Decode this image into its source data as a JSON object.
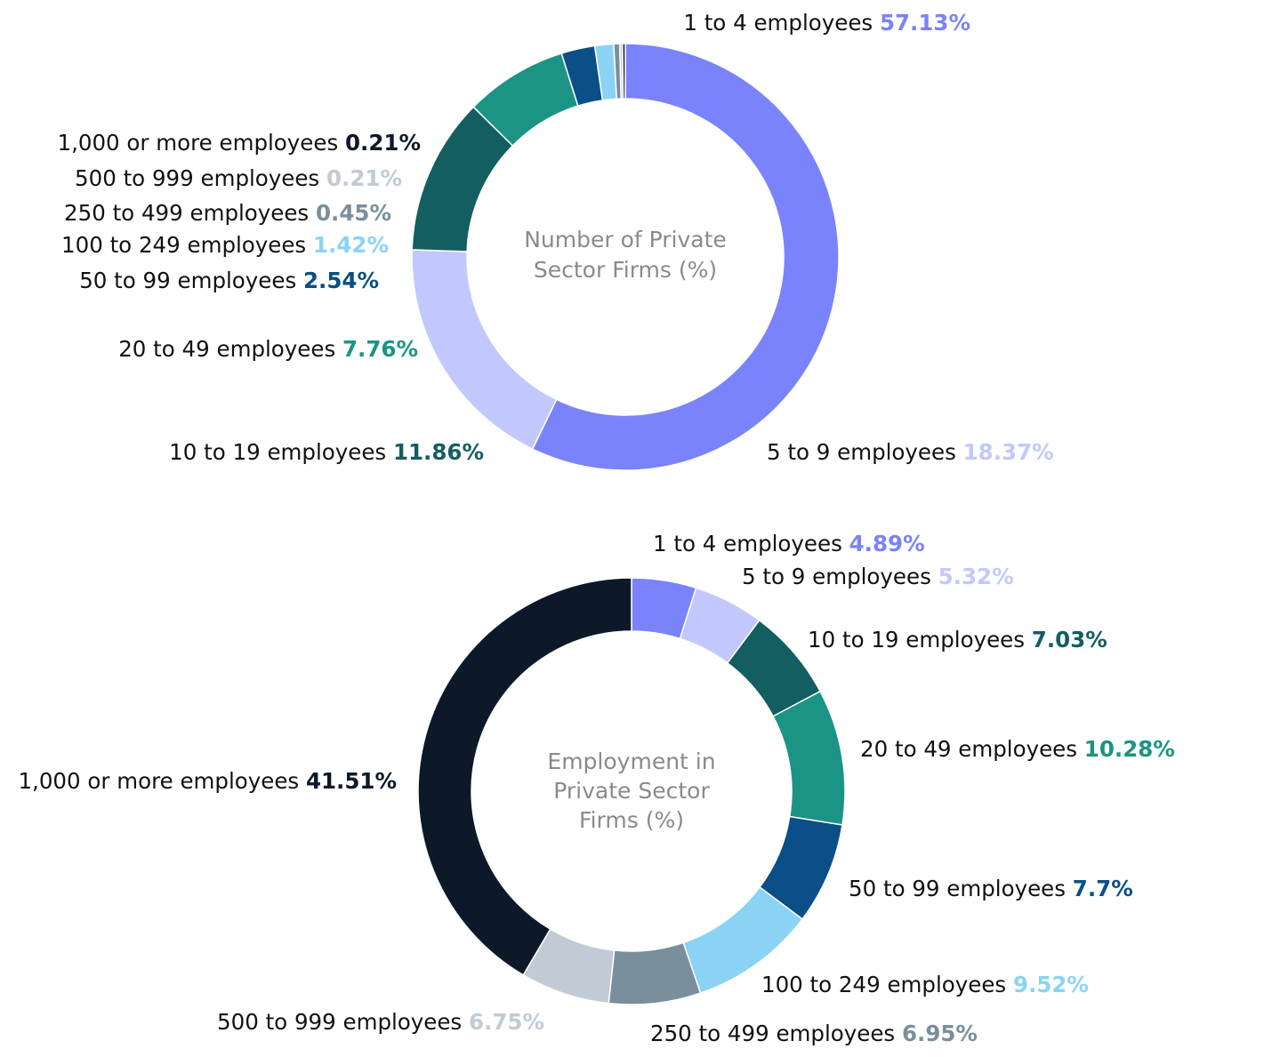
{
  "chart_data": [
    {
      "type": "pie",
      "title": "Number of Private Sector Firms (%)",
      "title_lines": [
        "Number of Private",
        "Sector Firms (%)"
      ],
      "categories": [
        "1 to 4 employees",
        "5 to 9 employees",
        "10 to 19 employees",
        "20 to 49 employees",
        "50 to 99 employees",
        "100 to 249 employees",
        "250 to 499 employees",
        "500 to 999 employees",
        "1,000 or more employees"
      ],
      "values": [
        57.13,
        18.37,
        11.86,
        7.76,
        2.54,
        1.42,
        0.45,
        0.21,
        0.21
      ],
      "value_labels": [
        "57.13%",
        "18.37%",
        "11.86%",
        "7.76%",
        "2.54%",
        "1.42%",
        "0.45%",
        "0.21%",
        "0.21%"
      ],
      "colors": [
        "#7a83fb",
        "#c3c8fc",
        "#135e61",
        "#1b9485",
        "#0a4f87",
        "#8ad3f5",
        "#7a8f9c",
        "#c1cbd5",
        "#0d1928"
      ],
      "donut": true
    },
    {
      "type": "pie",
      "title": "Employment in Private Sector Firms (%)",
      "title_lines": [
        "Employment in",
        "Private Sector",
        "Firms (%)"
      ],
      "categories": [
        "1 to 4 employees",
        "5 to 9 employees",
        "10 to 19 employees",
        "20 to 49 employees",
        "50 to 99 employees",
        "100 to 249 employees",
        "250 to 499 employees",
        "500 to 999 employees",
        "1,000 or more employees"
      ],
      "values": [
        4.89,
        5.32,
        7.03,
        10.28,
        7.7,
        9.52,
        6.95,
        6.75,
        41.51
      ],
      "value_labels": [
        "4.89%",
        "5.32%",
        "7.03%",
        "10.28%",
        "7.7%",
        "9.52%",
        "6.95%",
        "6.75%",
        "41.51%"
      ],
      "colors": [
        "#7a83fb",
        "#c3c8fc",
        "#135e61",
        "#1b9485",
        "#0a4f87",
        "#8ad3f5",
        "#7a8f9c",
        "#c1cbd5",
        "#0d1928"
      ],
      "donut": true
    }
  ]
}
